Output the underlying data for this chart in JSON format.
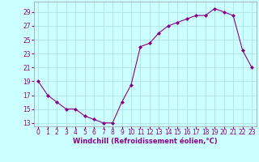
{
  "x": [
    0,
    1,
    2,
    3,
    4,
    5,
    6,
    7,
    8,
    9,
    10,
    11,
    12,
    13,
    14,
    15,
    16,
    17,
    18,
    19,
    20,
    21,
    22,
    23
  ],
  "y": [
    19,
    17,
    16,
    15,
    15,
    14,
    13.5,
    13,
    13,
    16,
    18.5,
    24,
    24.5,
    26,
    27,
    27.5,
    28,
    28.5,
    28.5,
    29.5,
    29,
    28.5,
    23.5,
    21
  ],
  "line_color": "#8B008B",
  "marker": "D",
  "markersize": 2.0,
  "bg_color": "#CCFFFF",
  "grid_color": "#aadddd",
  "xlabel": "Windchill (Refroidissement éolien,°C)",
  "xlabel_color": "#8B008B",
  "xlabel_fontsize": 6.0,
  "tick_color": "#8B008B",
  "tick_fontsize": 5.5,
  "yticks": [
    13,
    15,
    17,
    19,
    21,
    23,
    25,
    27,
    29
  ],
  "xticks": [
    0,
    1,
    2,
    3,
    4,
    5,
    6,
    7,
    8,
    9,
    10,
    11,
    12,
    13,
    14,
    15,
    16,
    17,
    18,
    19,
    20,
    21,
    22,
    23
  ],
  "ylim": [
    12.5,
    30.5
  ],
  "xlim": [
    -0.5,
    23.5
  ]
}
